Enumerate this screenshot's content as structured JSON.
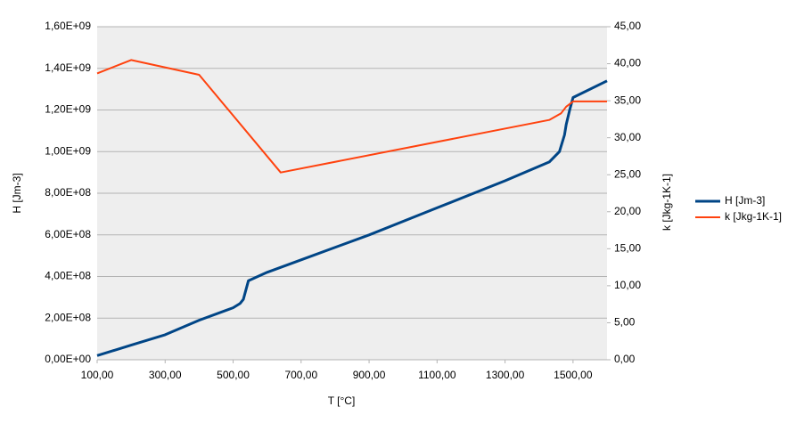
{
  "chart_data": {
    "type": "line",
    "x_label": "T [°C]",
    "y_label": "H [Jm-3]",
    "y2_label": "k [Jkg-1K-1]",
    "xlim": [
      100,
      1600
    ],
    "xticks": [
      {
        "value": 100,
        "label": "100,00"
      },
      {
        "value": 300,
        "label": "300,00"
      },
      {
        "value": 500,
        "label": "500,00"
      },
      {
        "value": 700,
        "label": "700,00"
      },
      {
        "value": 900,
        "label": "900,00"
      },
      {
        "value": 1100,
        "label": "1100,00"
      },
      {
        "value": 1300,
        "label": "1300,00"
      },
      {
        "value": 1500,
        "label": "1500,00"
      }
    ],
    "ylim": [
      0,
      1600000000
    ],
    "yticks": [
      {
        "value": 0,
        "label": "0,00E+00"
      },
      {
        "value": 200000000,
        "label": "2,00E+08"
      },
      {
        "value": 400000000,
        "label": "4,00E+08"
      },
      {
        "value": 600000000,
        "label": "6,00E+08"
      },
      {
        "value": 800000000,
        "label": "8,00E+08"
      },
      {
        "value": 1000000000,
        "label": "1,00E+09"
      },
      {
        "value": 1200000000,
        "label": "1,20E+09"
      },
      {
        "value": 1400000000,
        "label": "1,40E+09"
      },
      {
        "value": 1600000000,
        "label": "1,60E+09"
      }
    ],
    "y2lim": [
      0,
      45
    ],
    "y2ticks": [
      {
        "value": 0,
        "label": "0,00"
      },
      {
        "value": 5,
        "label": "5,00"
      },
      {
        "value": 10,
        "label": "10,00"
      },
      {
        "value": 15,
        "label": "15,00"
      },
      {
        "value": 20,
        "label": "20,00"
      },
      {
        "value": 25,
        "label": "25,00"
      },
      {
        "value": 30,
        "label": "30,00"
      },
      {
        "value": 35,
        "label": "35,00"
      },
      {
        "value": 40,
        "label": "40,00"
      },
      {
        "value": 45,
        "label": "45,00"
      }
    ],
    "grid": true,
    "legend": "right",
    "series": [
      {
        "name": "H [Jm-3]",
        "color": "#004586",
        "x": [
          100,
          200,
          300,
          400,
          500,
          520,
          530,
          545,
          600,
          700,
          900,
          1100,
          1300,
          1430,
          1460,
          1475,
          1480,
          1490,
          1500,
          1600
        ],
        "values": [
          20000000,
          70000000,
          120000000,
          190000000,
          250000000,
          270000000,
          290000000,
          380000000,
          420000000,
          480000000,
          600000000,
          730000000,
          860000000,
          950000000,
          1000000000,
          1080000000,
          1130000000,
          1200000000,
          1260000000,
          1340000000
        ]
      },
      {
        "name": "k [Jkg-1K-1]",
        "color": "#ff420e",
        "axis": "y2",
        "x": [
          100,
          200,
          400,
          640,
          1430,
          1465,
          1480,
          1500,
          1600
        ],
        "values": [
          38.7,
          40.5,
          38.5,
          25.3,
          32.4,
          33.3,
          34.2,
          34.9,
          34.9
        ]
      }
    ]
  }
}
